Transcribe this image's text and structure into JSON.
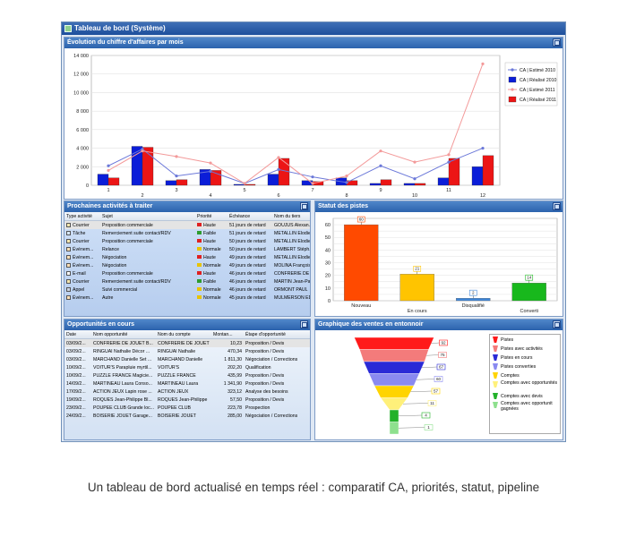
{
  "window": {
    "title": "Tableau de bord (Système)"
  },
  "colors": {
    "est2010": "#6b78d9",
    "real2010": "#0b1dd8",
    "est2011": "#f39a9a",
    "real2011": "#ec1515",
    "header": "#2b62ad"
  },
  "revenue_panel": {
    "title": "Évolution du chiffre d'affaires par mois"
  },
  "chart_data": [
    {
      "type": "bar",
      "title": "Évolution du chiffre d'affaires par mois",
      "categories": [
        "1",
        "2",
        "3",
        "4",
        "5",
        "6",
        "7",
        "8",
        "9",
        "10",
        "11",
        "12"
      ],
      "ylim": [
        0,
        14000
      ],
      "yticks": [
        0,
        2000,
        4000,
        6000,
        8000,
        10000,
        12000,
        14000
      ],
      "grid": true,
      "legend_position": "top-right",
      "series": [
        {
          "name": "CA | Estimé 2010",
          "kind": "line",
          "values": [
            2100,
            3900,
            1000,
            1500,
            200,
            1700,
            900,
            300,
            2100,
            700,
            2500,
            4000
          ]
        },
        {
          "name": "CA | Réalisé 2010",
          "kind": "bar",
          "values": [
            1200,
            4200,
            500,
            1700,
            100,
            1200,
            500,
            800,
            200,
            200,
            800,
            2000
          ]
        },
        {
          "name": "CA | Estimé 2011",
          "kind": "line",
          "values": [
            1600,
            3700,
            3100,
            2400,
            200,
            3000,
            200,
            1000,
            3700,
            2500,
            3300,
            13100
          ]
        },
        {
          "name": "CA | Réalisé 2011",
          "kind": "bar",
          "values": [
            800,
            4100,
            600,
            1600,
            100,
            2900,
            400,
            500,
            600,
            200,
            2900,
            3200
          ]
        }
      ]
    },
    {
      "type": "bar",
      "title": "Statut des pistes",
      "categories": [
        "Nouveau",
        "En cours",
        "Disqualifié",
        "Converti"
      ],
      "values": [
        60,
        21,
        2,
        14
      ],
      "colors": [
        "#ff4a00",
        "#ffc400",
        "#3f86d8",
        "#18b81c"
      ],
      "ylim": [
        0,
        65
      ],
      "yticks": [
        0,
        5,
        10,
        15,
        20,
        25,
        30,
        35,
        40,
        45,
        50,
        55,
        60,
        65
      ],
      "grid": true
    },
    {
      "type": "funnel",
      "title": "Graphique des ventes en entonnoir",
      "categories": [
        "Pistes",
        "Pistes avec activités",
        "Pistes en cours",
        "Pistes converties",
        "Comptes",
        "Comptes avec opportunités",
        "Comptes avec devis",
        "Comptes avec opportunit gagnées"
      ],
      "values": [
        92,
        75,
        67,
        60,
        57,
        11,
        4,
        1
      ],
      "colors": [
        "#ff1a1a",
        "#f37b7b",
        "#2a2ad6",
        "#8a8af0",
        "#ffd400",
        "#fff07a",
        "#23b12a",
        "#8ee08e"
      ],
      "legend_position": "right"
    }
  ],
  "activities": {
    "title": "Prochaines activités à traiter",
    "columns": [
      "Type activité",
      "Sujet",
      "Priorité",
      "Échéance",
      "Nom du tiers"
    ],
    "rows": [
      {
        "type": "Courrier",
        "icon": "letter",
        "subject": "Proposition commerciale",
        "priority": "Haute",
        "flag": "#e02020",
        "due": "51 jours de retard",
        "third": "GOUJUS Alexan..."
      },
      {
        "type": "Tâche",
        "icon": "task",
        "subject": "Remerciement suite contact/RDV",
        "priority": "Faible",
        "flag": "#2f9c2f",
        "due": "51 jours de retard",
        "third": "METALLIN Elodie"
      },
      {
        "type": "Courrier",
        "icon": "letter",
        "subject": "Proposition commerciale",
        "priority": "Haute",
        "flag": "#e02020",
        "due": "50 jours de retard",
        "third": "METALLIN Elodie"
      },
      {
        "type": "Événem...",
        "icon": "event",
        "subject": "Relance",
        "priority": "Normale",
        "flag": "#e8c300",
        "due": "50 jours de retard",
        "third": "LAMBERT Stéph..."
      },
      {
        "type": "Événem...",
        "icon": "event",
        "subject": "Négociation",
        "priority": "Haute",
        "flag": "#e02020",
        "due": "49 jours de retard",
        "third": "METALLIN Elodie"
      },
      {
        "type": "Événem...",
        "icon": "event",
        "subject": "Négociation",
        "priority": "Normale",
        "flag": "#e8c300",
        "due": "49 jours de retard",
        "third": "MOLINA François"
      },
      {
        "type": "E-mail",
        "icon": "email",
        "subject": "Proposition commerciale",
        "priority": "Haute",
        "flag": "#e02020",
        "due": "46 jours de retard",
        "third": "CONFRERIE DE ..."
      },
      {
        "type": "Courrier",
        "icon": "letter",
        "subject": "Remerciement suite contact/RDV",
        "priority": "Faible",
        "flag": "#2f9c2f",
        "due": "46 jours de retard",
        "third": "MARTIN Jean-Paul"
      },
      {
        "type": "Appel",
        "icon": "call",
        "subject": "Suivi commercial",
        "priority": "Normale",
        "flag": "#e8c300",
        "due": "46 jours de retard",
        "third": "ORMONT PAUL"
      },
      {
        "type": "Événem...",
        "icon": "event",
        "subject": "Autre",
        "priority": "Normale",
        "flag": "#e8c300",
        "due": "45 jours de retard",
        "third": "MULMERSON ED"
      }
    ]
  },
  "leads": {
    "title": "Statut des pistes"
  },
  "opportunities": {
    "title": "Opportunités en cours",
    "columns": [
      "Date",
      "Nom opportunité",
      "Nom du compte",
      "Montan...",
      "Étape d'opportunité"
    ],
    "rows": [
      {
        "date": "03/09/2...",
        "name": "CONFRERIE DE JOUET B...",
        "account": "CONFRERIE DE JOUET",
        "amount": "10,23",
        "stage": "Proposition / Devis"
      },
      {
        "date": "03/09/2...",
        "name": "RINGUAI Nathalie Décor ...",
        "account": "RINGUAI Nathalie",
        "amount": "470,34",
        "stage": "Proposition / Devis"
      },
      {
        "date": "03/09/2...",
        "name": "MARCHAND Danielle Set ...",
        "account": "MARCHAND Danielle",
        "amount": "1 811,30",
        "stage": "Négociation / Corrections"
      },
      {
        "date": "10/09/2...",
        "name": "VOITUR'S Parapluie myrtil...",
        "account": "VOITUR'S",
        "amount": "202,20",
        "stage": "Qualification"
      },
      {
        "date": "10/09/2...",
        "name": "PUZZLE FRANCE Magicie...",
        "account": "PUZZLE FRANCE",
        "amount": "435,99",
        "stage": "Proposition / Devis"
      },
      {
        "date": "14/09/2...",
        "name": "MARTINEAU Laura Conso...",
        "account": "MARTINEAU Laura",
        "amount": "1 341,90",
        "stage": "Proposition / Devis"
      },
      {
        "date": "17/09/2...",
        "name": "ACTION JEUX Lapin rose ...",
        "account": "ACTION JEUX",
        "amount": "323,12",
        "stage": "Analyse des besoins"
      },
      {
        "date": "19/09/2...",
        "name": "ROQUES Jean-Philippe Bl...",
        "account": "ROQUES Jean-Philippe",
        "amount": "57,50",
        "stage": "Proposition / Devis"
      },
      {
        "date": "23/09/2...",
        "name": "POUPEE CLUB Grande loc...",
        "account": "POUPEE CLUB",
        "amount": "223,78",
        "stage": "Prospection"
      },
      {
        "date": "24/09/2...",
        "name": "BOISERIE JOUET Garage...",
        "account": "BOISERIE JOUET",
        "amount": "285,00",
        "stage": "Négociation / Corrections"
      }
    ]
  },
  "funnel": {
    "title": "Graphique des ventes en entonnoir"
  },
  "caption": "Un tableau de bord actualisé en temps réel : comparatif CA, priorités, statut, pipeline"
}
